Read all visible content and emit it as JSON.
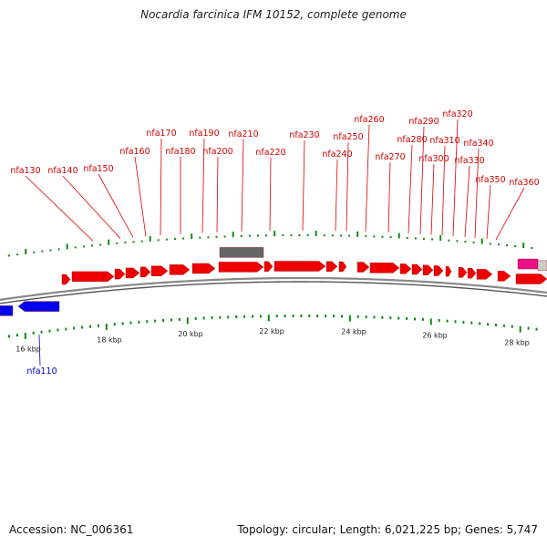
{
  "title": "Nocardia farcinica IFM 10152, complete genome",
  "accession": "Accession: NC_006361",
  "topology": "Topology: circular; Length: 6,021,225 bp; Genes: 5,747",
  "colors": {
    "forward_gene": "#ee0000",
    "reverse_gene": "#0000ee",
    "pseudo_gene": "#666666",
    "rna_gene": "#ee1188",
    "tick": "#118811",
    "backbone": "#888888"
  },
  "scale_labels": [
    "16 kbp",
    "18 kbp",
    "20 kbp",
    "22 kbp",
    "24 kbp",
    "26 kbp",
    "28 kbp"
  ],
  "forward_labels": [
    "nfa130",
    "nfa140",
    "nfa150",
    "nfa160",
    "nfa170",
    "nfa180",
    "nfa190",
    "nfa200",
    "nfa210",
    "nfa220",
    "nfa230",
    "nfa240",
    "nfa250",
    "nfa260",
    "nfa270",
    "nfa280",
    "nfa290",
    "nfa300",
    "nfa310",
    "nfa320",
    "nfa330",
    "nfa340",
    "nfa350",
    "nfa360"
  ],
  "reverse_labels": [
    "nfa110"
  ]
}
